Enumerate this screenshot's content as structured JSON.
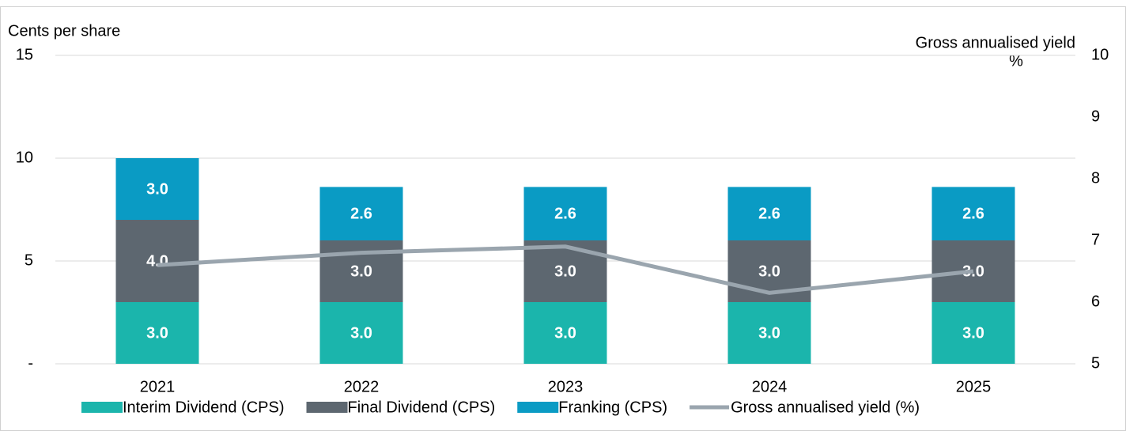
{
  "chart_data": {
    "type": "bar",
    "stacked": true,
    "ylabel": "Cents per share",
    "y2label": [
      "Gross annualised yield",
      "%"
    ],
    "categories": [
      "2021",
      "2022",
      "2023",
      "2024",
      "2025"
    ],
    "series": [
      {
        "name": "Interim Dividend (CPS)",
        "color": "#1bb5ac",
        "values": [
          3.0,
          3.0,
          3.0,
          3.0,
          3.0
        ],
        "value_labels": [
          "3.0",
          "3.0",
          "3.0",
          "3.0",
          "3.0"
        ]
      },
      {
        "name": "Final Dividend (CPS)",
        "color": "#5d6770",
        "values": [
          4.0,
          3.0,
          3.0,
          3.0,
          3.0
        ],
        "value_labels": [
          "4.0",
          "3.0",
          "3.0",
          "3.0",
          "3.0"
        ]
      },
      {
        "name": "Franking (CPS)",
        "color": "#0a9bc4",
        "values": [
          3.0,
          2.6,
          2.6,
          2.6,
          2.6
        ],
        "value_labels": [
          "3.0",
          "2.6",
          "2.6",
          "2.6",
          "2.6"
        ]
      },
      {
        "name": "Gross annualised yield (%)",
        "color": "#9aa5ae",
        "type": "line",
        "axis": "y2",
        "values": [
          6.6,
          6.8,
          6.9,
          6.15,
          6.5
        ]
      }
    ],
    "ylim": [
      0,
      15
    ],
    "yticks": [
      {
        "value": 0,
        "label": "-"
      },
      5,
      10,
      15
    ],
    "y2lim": [
      5,
      10
    ],
    "y2ticks": [
      5,
      6,
      7,
      8,
      9,
      10
    ],
    "grid": true
  }
}
